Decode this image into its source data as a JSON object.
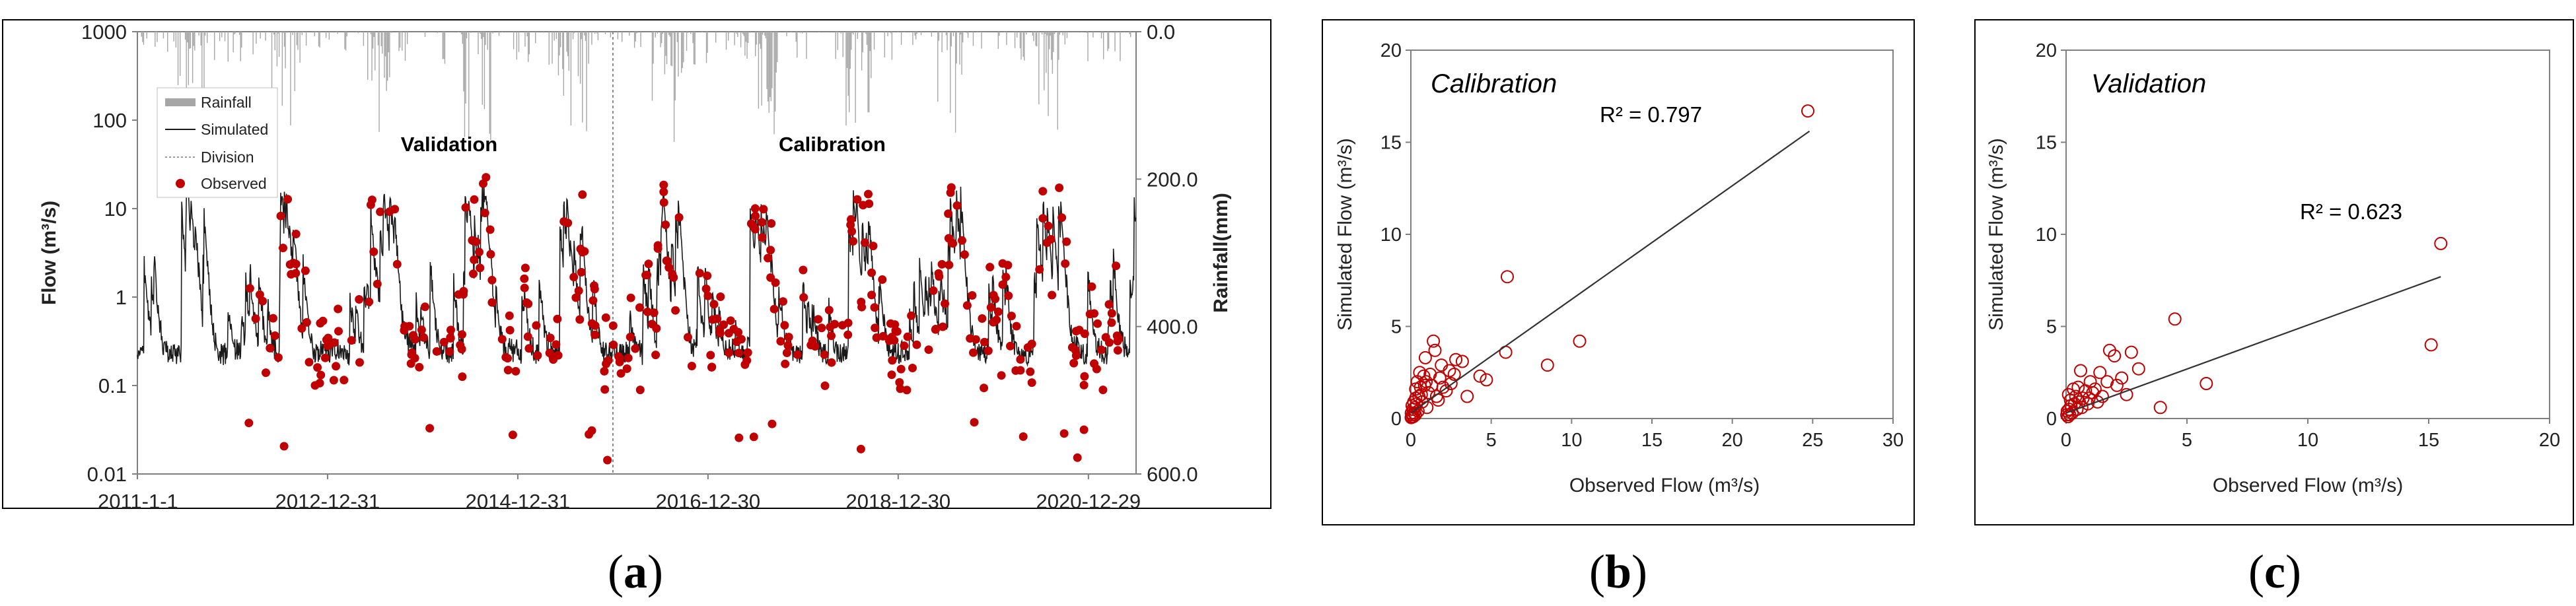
{
  "chart_data": [
    {
      "id": "a",
      "type": "line",
      "panel_label": "a",
      "title": "",
      "annotations": [
        "Validation",
        "Calibration"
      ],
      "xlabel": "",
      "ylabel": "Flow (m³/s)",
      "ylabel2": "Rainfall(mm)",
      "y_scale": "log",
      "ylim": [
        0.01,
        1000
      ],
      "y_ticks": [
        "1000",
        "100",
        "10",
        "1",
        "0.1",
        "0.01"
      ],
      "y2lim": [
        0.0,
        600.0
      ],
      "y2_ticks": [
        "0.0",
        "200.0",
        "400.0",
        "600.0"
      ],
      "x_range": [
        "2011-1-1",
        "2021-6-30"
      ],
      "x_ticks": [
        "2011-1-1",
        "2012-12-31",
        "2014-12-31",
        "2016-12-30",
        "2018-12-30",
        "2020-12-29"
      ],
      "division_date": "2015-12-31",
      "legend": [
        "Rainfall",
        "Simulated",
        "Division",
        "Observed"
      ],
      "legend_position": "top-left",
      "colors": {
        "simulated": "#1a1a1a",
        "observed": "#c00000",
        "rainfall": "#a6a6a6",
        "division": "#888888"
      },
      "observed_count": 380
    },
    {
      "id": "b",
      "type": "scatter",
      "panel_label": "b",
      "title": "Calibration",
      "xlabel": "Observed Flow (m³/s)",
      "ylabel": "Simulated Flow (m³/s)",
      "xlim": [
        0,
        30
      ],
      "ylim": [
        0,
        20
      ],
      "x_ticks": [
        "0",
        "5",
        "10",
        "15",
        "20",
        "25",
        "30"
      ],
      "y_ticks": [
        "0",
        "5",
        "10",
        "15",
        "20"
      ],
      "r2_label": "R² = 0.797",
      "trendline": {
        "x": [
          0,
          24.8
        ],
        "y": [
          0.3,
          15.6
        ]
      },
      "points": [
        [
          24.7,
          16.7
        ],
        [
          10.5,
          4.2
        ],
        [
          8.5,
          2.9
        ],
        [
          6.0,
          7.7
        ],
        [
          5.9,
          3.6
        ],
        [
          4.7,
          2.1
        ],
        [
          4.3,
          2.3
        ],
        [
          3.5,
          1.2
        ],
        [
          3.2,
          3.1
        ],
        [
          2.8,
          3.2
        ],
        [
          2.7,
          2.4
        ],
        [
          2.5,
          1.9
        ],
        [
          2.2,
          1.5
        ],
        [
          1.9,
          2.9
        ],
        [
          1.7,
          1.0
        ],
        [
          1.5,
          3.7
        ],
        [
          1.4,
          4.2
        ],
        [
          1.3,
          1.8
        ],
        [
          1.2,
          2.4
        ],
        [
          1.1,
          1.4
        ],
        [
          0.9,
          3.3
        ],
        [
          0.85,
          1.8
        ],
        [
          0.8,
          2.3
        ],
        [
          0.7,
          0.9
        ],
        [
          0.6,
          1.7
        ],
        [
          0.55,
          2.5
        ],
        [
          0.5,
          1.2
        ],
        [
          0.45,
          0.4
        ],
        [
          0.4,
          2.0
        ],
        [
          0.35,
          0.8
        ],
        [
          0.3,
          1.1
        ],
        [
          0.28,
          0.2
        ],
        [
          0.25,
          0.6
        ],
        [
          0.2,
          0.3
        ],
        [
          0.18,
          0.9
        ],
        [
          0.15,
          0.1
        ],
        [
          0.12,
          0.5
        ],
        [
          0.1,
          0.2
        ],
        [
          0.08,
          0.7
        ],
        [
          0.05,
          0.1
        ],
        [
          0.03,
          0.3
        ],
        [
          0.02,
          0.05
        ],
        [
          1.6,
          1.2
        ],
        [
          2.0,
          1.7
        ],
        [
          2.4,
          2.6
        ],
        [
          1.0,
          0.6
        ],
        [
          0.65,
          1.3
        ],
        [
          0.3,
          1.6
        ],
        [
          0.95,
          2.0
        ],
        [
          1.8,
          2.2
        ]
      ]
    },
    {
      "id": "c",
      "type": "scatter",
      "panel_label": "c",
      "title": "Validation",
      "xlabel": "Observed Flow (m³/s)",
      "ylabel": "Simulated Flow (m³/s)",
      "xlim": [
        0,
        20
      ],
      "ylim": [
        0,
        20
      ],
      "x_ticks": [
        "0",
        "5",
        "10",
        "15",
        "20"
      ],
      "y_ticks": [
        "0",
        "5",
        "10",
        "15",
        "20"
      ],
      "r2_label": "R² = 0.623",
      "trendline": {
        "x": [
          0,
          15.5
        ],
        "y": [
          0.3,
          7.7
        ]
      },
      "points": [
        [
          15.5,
          9.5
        ],
        [
          15.1,
          4.0
        ],
        [
          5.8,
          1.9
        ],
        [
          4.5,
          5.4
        ],
        [
          3.9,
          0.6
        ],
        [
          3.0,
          2.7
        ],
        [
          2.7,
          3.6
        ],
        [
          2.5,
          1.3
        ],
        [
          2.3,
          2.2
        ],
        [
          2.0,
          3.4
        ],
        [
          1.8,
          3.7
        ],
        [
          1.7,
          2.0
        ],
        [
          1.5,
          1.2
        ],
        [
          1.4,
          2.5
        ],
        [
          1.2,
          1.6
        ],
        [
          1.1,
          1.4
        ],
        [
          1.0,
          2.0
        ],
        [
          0.9,
          0.8
        ],
        [
          0.8,
          1.5
        ],
        [
          0.7,
          1.1
        ],
        [
          0.6,
          2.6
        ],
        [
          0.55,
          0.9
        ],
        [
          0.5,
          1.7
        ],
        [
          0.45,
          0.5
        ],
        [
          0.4,
          1.2
        ],
        [
          0.35,
          0.8
        ],
        [
          0.3,
          1.6
        ],
        [
          0.25,
          0.3
        ],
        [
          0.2,
          0.7
        ],
        [
          0.18,
          1.0
        ],
        [
          0.15,
          0.2
        ],
        [
          0.12,
          0.5
        ],
        [
          0.1,
          1.3
        ],
        [
          0.08,
          0.1
        ],
        [
          0.05,
          0.4
        ],
        [
          0.03,
          0.2
        ],
        [
          1.3,
          0.9
        ],
        [
          2.1,
          1.8
        ],
        [
          0.95,
          1.1
        ],
        [
          0.65,
          0.6
        ]
      ]
    }
  ]
}
